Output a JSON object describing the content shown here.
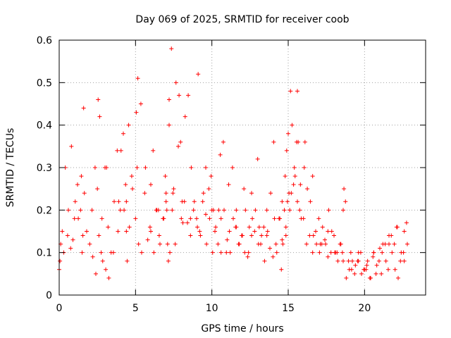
{
  "chart_data": {
    "type": "scatter",
    "title": "Day 069 of 2025, SRMTID for receiver coob",
    "xlabel": "GPS time / hours",
    "ylabel": "SRMTID / TECUs",
    "xlim": [
      0,
      24
    ],
    "ylim": [
      0,
      0.6
    ],
    "xticks": [
      0,
      5,
      10,
      15,
      20
    ],
    "xtick_labels": [
      "0",
      "5",
      "10",
      "15",
      "20"
    ],
    "yticks": [
      0,
      0.1,
      0.2,
      0.3,
      0.4,
      0.5,
      0.6
    ],
    "ytick_labels": [
      "0",
      "0.1",
      "0.2",
      "0.3",
      "0.4",
      "0.5",
      "0.6"
    ],
    "grid": true,
    "marker": "plus",
    "color": "#ff0000",
    "series": [
      {
        "name": "SRMTID",
        "x": [
          0.0,
          0.2,
          0.4,
          0.6,
          0.8,
          1.0,
          1.2,
          1.4,
          1.6,
          1.8,
          2.0,
          2.2,
          2.4,
          2.6,
          2.8,
          3.0,
          3.2,
          3.4,
          3.6,
          3.8,
          4.0,
          4.2,
          4.4,
          4.6,
          4.8,
          5.0,
          5.2,
          5.4,
          5.6,
          5.8,
          6.0,
          6.2,
          6.4,
          6.6,
          6.8,
          7.0,
          7.2,
          7.4,
          7.6,
          7.8,
          8.0,
          8.2,
          8.4,
          8.6,
          8.8,
          9.0,
          9.2,
          9.4,
          9.6,
          9.8,
          10.0,
          10.2,
          10.4,
          10.6,
          10.8,
          11.0,
          11.2,
          11.4,
          11.6,
          11.8,
          12.0,
          12.2,
          12.4,
          12.6,
          12.8,
          13.0,
          13.2,
          13.4,
          13.6,
          13.8,
          14.0,
          14.2,
          14.4,
          14.6,
          14.8,
          15.0,
          15.2,
          15.4,
          15.6,
          15.8,
          16.0,
          16.2,
          16.4,
          16.6,
          16.8,
          17.0,
          17.2,
          17.4,
          17.6,
          17.8,
          18.0,
          18.2,
          18.4,
          18.6,
          18.8,
          19.0,
          19.2,
          19.4,
          19.6,
          19.8,
          20.0,
          20.2,
          20.4,
          20.6,
          20.8,
          21.0,
          21.2,
          21.4,
          21.6,
          21.8,
          22.0,
          22.2,
          22.4,
          22.6,
          22.8,
          0.05,
          0.3,
          0.55,
          0.75,
          1.05,
          1.25,
          1.45,
          1.55,
          1.65,
          2.15,
          2.35,
          2.55,
          2.65,
          2.75,
          2.85,
          3.05,
          3.25,
          3.55,
          3.85,
          4.05,
          4.25,
          4.35,
          4.45,
          4.55,
          4.75,
          5.05,
          5.15,
          5.35,
          5.65,
          5.95,
          6.15,
          6.35,
          6.55,
          6.85,
          6.95,
          7.05,
          7.1,
          7.15,
          7.25,
          7.35,
          7.45,
          7.65,
          7.85,
          7.95,
          8.05,
          8.25,
          8.45,
          8.65,
          8.85,
          9.05,
          9.25,
          9.45,
          9.65,
          9.85,
          9.95,
          10.05,
          10.25,
          10.45,
          10.55,
          10.75,
          10.95,
          11.15,
          11.35,
          11.55,
          11.75,
          11.95,
          12.15,
          12.35,
          12.45,
          12.65,
          12.85,
          13.05,
          13.25,
          13.45,
          13.65,
          13.85,
          14.05,
          14.25,
          14.45,
          14.55,
          14.65,
          14.75,
          14.85,
          14.9,
          14.95,
          15.05,
          15.15,
          15.25,
          15.35,
          15.45,
          15.55,
          15.65,
          15.75,
          15.85,
          16.05,
          16.25,
          16.45,
          16.65,
          16.85,
          17.05,
          17.25,
          17.45,
          17.65,
          17.85,
          18.05,
          18.25,
          18.45,
          18.55,
          18.65,
          18.75,
          18.95,
          19.15,
          19.35,
          19.55,
          19.75,
          19.95,
          20.15,
          20.35,
          20.55,
          20.75,
          20.95,
          21.15,
          21.35,
          21.55,
          21.75,
          21.95,
          22.15,
          22.35,
          22.55,
          22.75,
          0.1,
          0.9,
          1.5,
          2.5,
          3.1,
          3.9,
          4.4,
          5.1,
          6.0,
          6.5,
          7.0,
          7.2,
          7.5,
          8.1,
          8.6,
          9.1,
          9.6,
          10.1,
          10.6,
          11.1,
          11.6,
          12.1,
          12.6,
          13.1,
          13.6,
          14.1,
          14.6,
          14.85,
          15.1,
          15.6,
          16.1,
          16.6,
          17.1,
          17.6,
          18.1,
          18.6,
          19.1,
          19.6,
          20.1,
          20.6,
          21.1,
          21.6,
          22.1,
          22.6
        ],
        "y": [
          0.06,
          0.15,
          0.3,
          0.2,
          0.35,
          0.18,
          0.26,
          0.2,
          0.44,
          0.15,
          0.12,
          0.09,
          0.05,
          0.14,
          0.18,
          0.3,
          0.16,
          0.1,
          0.22,
          0.34,
          0.2,
          0.38,
          0.22,
          0.16,
          0.25,
          0.18,
          0.12,
          0.1,
          0.24,
          0.13,
          0.15,
          0.1,
          0.2,
          0.12,
          0.18,
          0.22,
          0.46,
          0.2,
          0.12,
          0.35,
          0.18,
          0.22,
          0.17,
          0.14,
          0.2,
          0.18,
          0.15,
          0.22,
          0.19,
          0.25,
          0.2,
          0.15,
          0.12,
          0.1,
          0.2,
          0.13,
          0.1,
          0.18,
          0.16,
          0.12,
          0.14,
          0.2,
          0.1,
          0.24,
          0.15,
          0.32,
          0.12,
          0.16,
          0.2,
          0.11,
          0.09,
          0.12,
          0.18,
          0.22,
          0.28,
          0.38,
          0.24,
          0.3,
          0.22,
          0.26,
          0.18,
          0.12,
          0.14,
          0.1,
          0.15,
          0.18,
          0.12,
          0.13,
          0.09,
          0.1,
          0.14,
          0.1,
          0.12,
          0.08,
          0.04,
          0.06,
          0.08,
          0.07,
          0.1,
          0.05,
          0.06,
          0.08,
          0.04,
          0.1,
          0.07,
          0.11,
          0.12,
          0.08,
          0.14,
          0.1,
          0.06,
          0.04,
          0.1,
          0.15,
          0.12,
          0.08,
          0.1,
          0.14,
          0.11,
          0.22,
          0.18,
          0.28,
          0.14,
          0.24,
          0.2,
          0.3,
          0.46,
          0.42,
          0.1,
          0.08,
          0.06,
          0.04,
          0.1,
          0.15,
          0.34,
          0.2,
          0.26,
          0.08,
          0.4,
          0.28,
          0.43,
          0.51,
          0.45,
          0.3,
          0.16,
          0.34,
          0.2,
          0.14,
          0.18,
          0.28,
          0.2,
          0.12,
          0.08,
          0.1,
          0.58,
          0.24,
          0.5,
          0.47,
          0.36,
          0.22,
          0.42,
          0.47,
          0.3,
          0.22,
          0.16,
          0.14,
          0.24,
          0.12,
          0.18,
          0.28,
          0.1,
          0.16,
          0.2,
          0.33,
          0.36,
          0.1,
          0.15,
          0.3,
          0.16,
          0.12,
          0.14,
          0.1,
          0.09,
          0.16,
          0.18,
          0.2,
          0.12,
          0.14,
          0.08,
          0.15,
          0.24,
          0.36,
          0.1,
          0.18,
          0.06,
          0.12,
          0.2,
          0.16,
          0.34,
          0.22,
          0.24,
          0.48,
          0.4,
          0.26,
          0.28,
          0.36,
          0.36,
          0.2,
          0.18,
          0.3,
          0.25,
          0.22,
          0.14,
          0.12,
          0.1,
          0.16,
          0.12,
          0.2,
          0.15,
          0.1,
          0.08,
          0.12,
          0.1,
          0.25,
          0.22,
          0.08,
          0.06,
          0.05,
          0.08,
          0.1,
          0.06,
          0.07,
          0.04,
          0.09,
          0.05,
          0.08,
          0.1,
          0.12,
          0.06,
          0.14,
          0.12,
          0.16,
          0.08,
          0.1,
          0.17,
          0.12,
          0.13,
          0.1,
          0.25,
          0.3,
          0.22,
          0.15,
          0.3,
          0.26,
          0.2,
          0.24,
          0.4,
          0.25,
          0.17,
          0.18,
          0.52,
          0.3,
          0.2,
          0.18,
          0.26,
          0.2,
          0.25,
          0.14,
          0.16,
          0.14,
          0.18,
          0.13,
          0.14,
          0.2,
          0.48,
          0.36,
          0.28,
          0.12,
          0.15,
          0.1,
          0.2,
          0.1,
          0.08,
          0.06,
          0.1,
          0.05,
          0.12,
          0.16,
          0.08
        ]
      }
    ]
  }
}
